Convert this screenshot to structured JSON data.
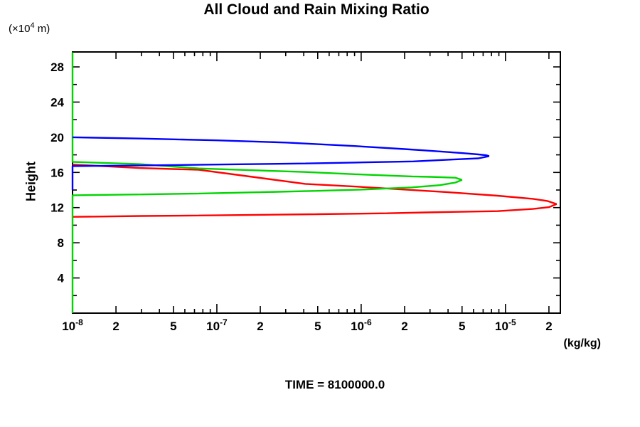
{
  "chart_data": {
    "type": "line",
    "title": "All Cloud and Rain Mixing Ratio",
    "ylabel": "Height",
    "y_scale_note": {
      "prefix": "(×10",
      "exponent": "4",
      "suffix": " m)"
    },
    "x_unit_label": "(kg/kg)",
    "time_label": "TIME = 8100000.0",
    "x_scale": "log",
    "x_range": [
      1e-08,
      2.4e-05
    ],
    "y_range": [
      0,
      29.7
    ],
    "grid": false,
    "legend": "none",
    "x_ticks": [
      {
        "value": 1e-08,
        "mantissa": "10",
        "exponent": "-8",
        "kind": "decade"
      },
      {
        "value": 2e-08,
        "text": "2",
        "kind": "labeled"
      },
      {
        "value": 5e-08,
        "text": "5",
        "kind": "labeled"
      },
      {
        "value": 1e-07,
        "mantissa": "10",
        "exponent": "-7",
        "kind": "decade"
      },
      {
        "value": 2e-07,
        "text": "2",
        "kind": "labeled"
      },
      {
        "value": 5e-07,
        "text": "5",
        "kind": "labeled"
      },
      {
        "value": 1e-06,
        "mantissa": "10",
        "exponent": "-6",
        "kind": "decade"
      },
      {
        "value": 2e-06,
        "text": "2",
        "kind": "labeled"
      },
      {
        "value": 5e-06,
        "text": "5",
        "kind": "labeled"
      },
      {
        "value": 1e-05,
        "mantissa": "10",
        "exponent": "-5",
        "kind": "decade"
      },
      {
        "value": 2e-05,
        "text": "2",
        "kind": "labeled"
      }
    ],
    "x_minor_ticks": [
      3e-08,
      4e-08,
      6e-08,
      7e-08,
      8e-08,
      9e-08,
      3e-07,
      4e-07,
      6e-07,
      7e-07,
      8e-07,
      9e-07,
      3e-06,
      4e-06,
      6e-06,
      7e-06,
      8e-06,
      9e-06
    ],
    "y_ticks": [
      {
        "value": 4,
        "text": "4"
      },
      {
        "value": 8,
        "text": "8"
      },
      {
        "value": 12,
        "text": "12"
      },
      {
        "value": 16,
        "text": "16"
      },
      {
        "value": 20,
        "text": "20"
      },
      {
        "value": 24,
        "text": "24"
      },
      {
        "value": 28,
        "text": "28"
      }
    ],
    "y_minor_ticks": [
      2,
      6,
      10,
      14,
      18,
      22,
      26
    ],
    "series": [
      {
        "name": "red-profile",
        "color": "#ff0000",
        "points": [
          [
            1e-08,
            10.95
          ],
          [
            3e-08,
            11.05
          ],
          [
            7.5e-08,
            11.1
          ],
          [
            4.9e-07,
            11.25
          ],
          [
            1.5e-06,
            11.35
          ],
          [
            2.8e-06,
            11.45
          ],
          [
            8.8e-06,
            11.6
          ],
          [
            1.55e-05,
            11.85
          ],
          [
            2e-05,
            12.05
          ],
          [
            2.26e-05,
            12.4
          ],
          [
            1.95e-05,
            12.75
          ],
          [
            1.55e-05,
            13.0
          ],
          [
            8.8e-06,
            13.35
          ],
          [
            4e-06,
            13.75
          ],
          [
            1.8e-06,
            14.1
          ],
          [
            9e-07,
            14.4
          ],
          [
            4.1e-07,
            14.7
          ],
          [
            1.76e-07,
            15.5
          ],
          [
            7.5e-08,
            16.3
          ],
          [
            2.9e-08,
            16.5
          ],
          [
            1e-08,
            16.9
          ]
        ]
      },
      {
        "name": "green-profile",
        "color": "#00d500",
        "points": [
          [
            1e-08,
            0.0
          ],
          [
            1e-08,
            13.4
          ],
          [
            3e-08,
            13.5
          ],
          [
            7.5e-08,
            13.6
          ],
          [
            2e-07,
            13.75
          ],
          [
            4.9e-07,
            13.9
          ],
          [
            1e-06,
            14.05
          ],
          [
            2.25e-06,
            14.3
          ],
          [
            3.5e-06,
            14.55
          ],
          [
            4.5e-06,
            14.85
          ],
          [
            5e-06,
            15.15
          ],
          [
            4.5e-06,
            15.4
          ],
          [
            3e-06,
            15.5
          ],
          [
            2.25e-06,
            15.55
          ],
          [
            9e-07,
            15.8
          ],
          [
            4.1e-07,
            16.05
          ],
          [
            1.76e-07,
            16.25
          ],
          [
            7.5e-08,
            16.45
          ],
          [
            2.9e-08,
            16.95
          ],
          [
            1e-08,
            17.2
          ],
          [
            1e-08,
            29.66
          ]
        ]
      },
      {
        "name": "blue-profile",
        "color": "#0000ff",
        "points": [
          [
            1e-08,
            20.0
          ],
          [
            3e-08,
            19.85
          ],
          [
            1e-07,
            19.65
          ],
          [
            3e-07,
            19.4
          ],
          [
            9e-07,
            19.0
          ],
          [
            2e-06,
            18.65
          ],
          [
            2.8e-06,
            18.5
          ],
          [
            5e-06,
            18.2
          ],
          [
            6.5e-06,
            18.05
          ],
          [
            7.4e-06,
            17.95
          ],
          [
            7.7e-06,
            17.85
          ],
          [
            6.5e-06,
            17.6
          ],
          [
            4e-06,
            17.45
          ],
          [
            2.3e-06,
            17.25
          ],
          [
            9e-07,
            17.12
          ],
          [
            4.1e-07,
            17.02
          ],
          [
            1e-07,
            16.9
          ],
          [
            3e-08,
            16.8
          ],
          [
            1e-08,
            16.72
          ],
          [
            1e-08,
            14.0
          ]
        ]
      }
    ]
  }
}
